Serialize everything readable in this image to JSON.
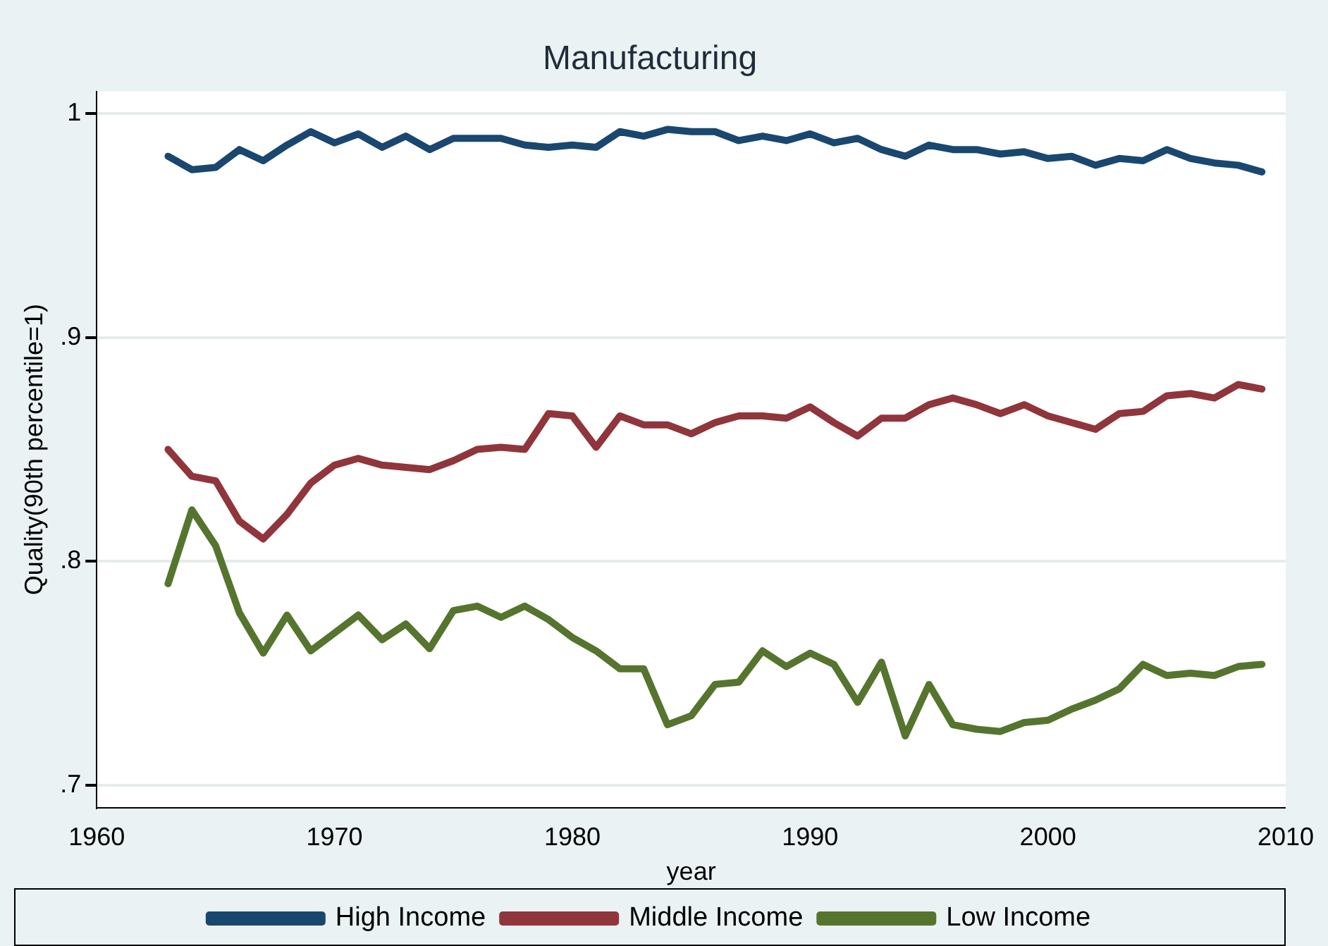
{
  "chart_data": {
    "type": "line",
    "title": "Manufacturing",
    "xlabel": "year",
    "ylabel": "Quality(90th percentile=1)",
    "x": [
      1963,
      1964,
      1965,
      1966,
      1967,
      1968,
      1969,
      1970,
      1971,
      1972,
      1973,
      1974,
      1975,
      1976,
      1977,
      1978,
      1979,
      1980,
      1981,
      1982,
      1983,
      1984,
      1985,
      1986,
      1987,
      1988,
      1989,
      1990,
      1991,
      1992,
      1993,
      1994,
      1995,
      1996,
      1997,
      1998,
      1999,
      2000,
      2001,
      2002,
      2003,
      2004,
      2005,
      2006,
      2007,
      2008,
      2009
    ],
    "series": [
      {
        "name": "High Income",
        "color": "#1a476f",
        "values": [
          0.981,
          0.975,
          0.976,
          0.984,
          0.979,
          0.986,
          0.992,
          0.987,
          0.991,
          0.985,
          0.99,
          0.984,
          0.989,
          0.989,
          0.989,
          0.986,
          0.985,
          0.986,
          0.985,
          0.992,
          0.99,
          0.993,
          0.992,
          0.992,
          0.988,
          0.99,
          0.988,
          0.991,
          0.987,
          0.989,
          0.984,
          0.981,
          0.986,
          0.984,
          0.984,
          0.982,
          0.983,
          0.98,
          0.981,
          0.977,
          0.98,
          0.979,
          0.984,
          0.98,
          0.978,
          0.977,
          0.974
        ]
      },
      {
        "name": "Middle Income",
        "color": "#90353b",
        "values": [
          0.85,
          0.838,
          0.836,
          0.818,
          0.81,
          0.821,
          0.835,
          0.843,
          0.846,
          0.843,
          0.842,
          0.841,
          0.845,
          0.85,
          0.851,
          0.85,
          0.866,
          0.865,
          0.851,
          0.865,
          0.861,
          0.861,
          0.857,
          0.862,
          0.865,
          0.865,
          0.864,
          0.869,
          0.862,
          0.856,
          0.864,
          0.864,
          0.87,
          0.873,
          0.87,
          0.866,
          0.87,
          0.865,
          0.862,
          0.859,
          0.866,
          0.867,
          0.874,
          0.875,
          0.873,
          0.879,
          0.877
        ]
      },
      {
        "name": "Low Income",
        "color": "#55752f",
        "values": [
          0.79,
          0.823,
          0.807,
          0.777,
          0.759,
          0.776,
          0.76,
          0.768,
          0.776,
          0.765,
          0.772,
          0.761,
          0.778,
          0.78,
          0.775,
          0.78,
          0.774,
          0.766,
          0.76,
          0.752,
          0.752,
          0.727,
          0.731,
          0.745,
          0.746,
          0.76,
          0.753,
          0.759,
          0.754,
          0.737,
          0.755,
          0.722,
          0.745,
          0.727,
          0.725,
          0.724,
          0.728,
          0.729,
          0.734,
          0.738,
          0.743,
          0.754,
          0.749,
          0.75,
          0.749,
          0.753,
          0.754
        ]
      }
    ],
    "xlim": [
      1960,
      2010
    ],
    "xticks": [
      1960,
      1970,
      1980,
      1990,
      2000,
      2010
    ],
    "ylim": [
      0.69,
      1.01
    ],
    "yticks": [
      {
        "value": 0.7,
        "label": ".7"
      },
      {
        "value": 0.8,
        "label": ".8"
      },
      {
        "value": 0.9,
        "label": ".9"
      },
      {
        "value": 1,
        "label": "1"
      }
    ],
    "grid": "y",
    "legend": "bottom",
    "marker": "none",
    "line_style": "solid"
  }
}
